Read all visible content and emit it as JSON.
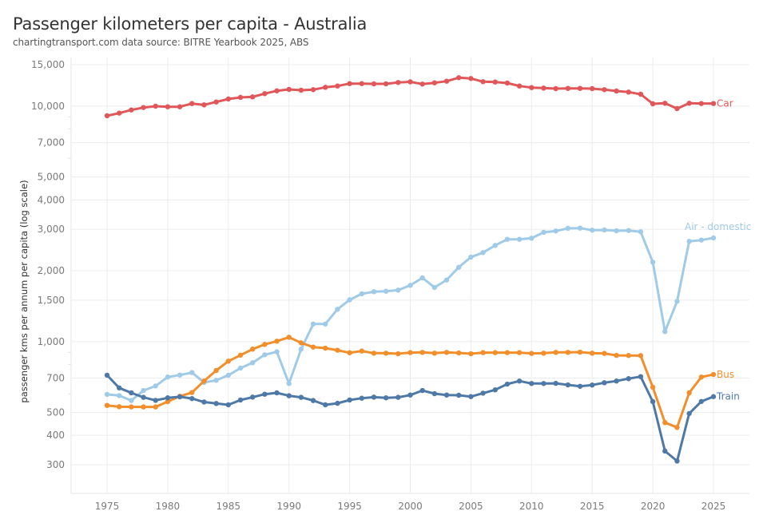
{
  "header": {
    "title": "Passenger kilometers per capita - Australia",
    "subtitle": "chartingtransport.com  data source: BITRE Yearbook 2025, ABS"
  },
  "chart_data": {
    "type": "line",
    "title": "Passenger kilometers per capita - Australia",
    "subtitle": "chartingtransport.com  data source: BITRE Yearbook 2025, ABS",
    "xlabel": "",
    "ylabel": "passenger kms per annum per capita (log scale)",
    "yscale": "log",
    "xlim": [
      1972,
      2028
    ],
    "ylim": [
      230,
      17000
    ],
    "grid": true,
    "legend": "direct labels at line ends (right)",
    "x_ticks": [
      1975,
      1980,
      1985,
      1990,
      1995,
      2000,
      2005,
      2010,
      2015,
      2020,
      2025
    ],
    "x_tick_labels": [
      "1975",
      "1980",
      "1985",
      "1990",
      "1995",
      "2000",
      "2005",
      "2010",
      "2015",
      "2020",
      "2025"
    ],
    "y_ticks": [
      300,
      400,
      500,
      700,
      1000,
      1500,
      2000,
      3000,
      4000,
      5000,
      7000,
      10000,
      15000
    ],
    "y_tick_labels": [
      "300",
      "400",
      "500",
      "700",
      "1,000",
      "1,500",
      "2,000",
      "3,000",
      "4,000",
      "5,000",
      "7,000",
      "10,000",
      "15,000"
    ],
    "y_minor_ticks": [
      600,
      800,
      900,
      6000,
      8000,
      9000
    ],
    "x": [
      1975,
      1976,
      1977,
      1978,
      1979,
      1980,
      1981,
      1982,
      1983,
      1984,
      1985,
      1986,
      1987,
      1988,
      1989,
      1990,
      1991,
      1992,
      1993,
      1994,
      1995,
      1996,
      1997,
      1998,
      1999,
      2000,
      2001,
      2002,
      2003,
      2004,
      2005,
      2006,
      2007,
      2008,
      2009,
      2010,
      2011,
      2012,
      2013,
      2014,
      2015,
      2016,
      2017,
      2018,
      2019,
      2020,
      2021,
      2022,
      2023,
      2024,
      2025
    ],
    "series": [
      {
        "name": "Car",
        "label": "Car",
        "color": "#e15759",
        "values": [
          9100,
          9340,
          9635,
          9865,
          9996,
          9940,
          9940,
          10257,
          10128,
          10418,
          10724,
          10892,
          10950,
          11298,
          11619,
          11776,
          11684,
          11748,
          12025,
          12177,
          12465,
          12465,
          12436,
          12436,
          12603,
          12682,
          12408,
          12562,
          12762,
          13209,
          13106,
          12702,
          12661,
          12534,
          12177,
          11990,
          11932,
          11868,
          11896,
          11896,
          11868,
          11748,
          11592,
          11475,
          11237,
          10232,
          10288,
          9764,
          10288,
          10260,
          10260
        ]
      },
      {
        "name": "Air - domestic",
        "label": "Air - domestic",
        "color": "#a0cbe8",
        "values": [
          597,
          590,
          562,
          620,
          648,
          707,
          721,
          739,
          671,
          685,
          720,
          772,
          813,
          879,
          905,
          664,
          929,
          1188,
          1188,
          1372,
          1505,
          1596,
          1629,
          1637,
          1654,
          1734,
          1865,
          1698,
          1827,
          2069,
          2285,
          2389,
          2562,
          2720,
          2720,
          2749,
          2911,
          2950,
          3027,
          3034,
          2973,
          2980,
          2957,
          2964,
          2927,
          2175,
          1103,
          1484,
          2666,
          2699,
          2756
        ]
      },
      {
        "name": "Bus",
        "label": "Bus",
        "color": "#f28e2b",
        "values": [
          536,
          529,
          528,
          528,
          528,
          556,
          586,
          608,
          680,
          754,
          826,
          876,
          929,
          973,
          1004,
          1044,
          988,
          948,
          938,
          919,
          897,
          912,
          893,
          893,
          888,
          898,
          900,
          893,
          900,
          895,
          888,
          898,
          898,
          898,
          898,
          891,
          893,
          900,
          900,
          902,
          893,
          891,
          874,
          873,
          872,
          640,
          453,
          432,
          606,
          707,
          725
        ]
      },
      {
        "name": "Train",
        "label": "Train",
        "color": "#4e79a7",
        "values": [
          720,
          636,
          606,
          580,
          563,
          577,
          583,
          573,
          554,
          546,
          539,
          565,
          581,
          598,
          606,
          589,
          580,
          562,
          539,
          547,
          565,
          575,
          581,
          577,
          580,
          593,
          620,
          601,
          593,
          592,
          584,
          604,
          624,
          660,
          680,
          664,
          664,
          665,
          655,
          646,
          654,
          669,
          680,
          696,
          710,
          556,
          343,
          311,
          495,
          557,
          584
        ]
      }
    ]
  }
}
